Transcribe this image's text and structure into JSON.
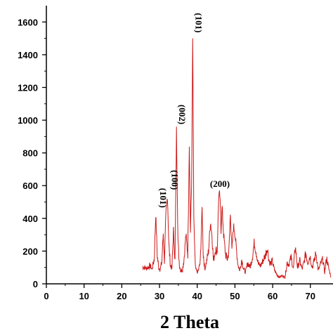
{
  "chart_data": {
    "type": "line",
    "title": "",
    "xlabel": "2 Theta",
    "ylabel": "",
    "xlim": [
      0,
      76
    ],
    "ylim": [
      0,
      1700
    ],
    "x_ticks": [
      0,
      10,
      20,
      30,
      40,
      50,
      60,
      70
    ],
    "y_ticks": [
      0,
      200,
      400,
      600,
      800,
      1000,
      1200,
      1400,
      1600
    ],
    "x_tick_labels": [
      "0",
      "10",
      "20",
      "30",
      "40",
      "50",
      "60",
      "70"
    ],
    "y_tick_labels": [
      "0",
      "200",
      "400",
      "600",
      "800",
      "1000",
      "1200",
      "1400",
      "1600"
    ],
    "grid": false,
    "line_color": "#cc1a1a",
    "series": [
      {
        "x": [
          25.5,
          26.5,
          27.5,
          28.0,
          28.6,
          29.0,
          29.4,
          29.8,
          30.2,
          30.6,
          31.0,
          31.3,
          31.7,
          32.1,
          32.5,
          32.9,
          33.3,
          33.7,
          34.1,
          34.5,
          34.9,
          35.3,
          35.7,
          36.1,
          36.5,
          37.0,
          37.5,
          37.9,
          38.2,
          38.5,
          38.8,
          39.1,
          39.5,
          39.9,
          40.3,
          40.8,
          41.3,
          41.6,
          42.0,
          42.5,
          43.0,
          43.5,
          43.9,
          44.3,
          44.8,
          45.3,
          45.7,
          46.0,
          46.3,
          46.6,
          47.0,
          47.5,
          48.0,
          48.4,
          48.8,
          49.2,
          49.6,
          49.9,
          50.3,
          50.8,
          51.3,
          51.8,
          52.3,
          52.8,
          53.4,
          54.0,
          54.6,
          55.1,
          55.6,
          56.2,
          56.8,
          57.4,
          58.0,
          58.6,
          59.0,
          59.4,
          59.9,
          60.4,
          61.0,
          61.8,
          62.5,
          63.3,
          63.8,
          64.3,
          64.9,
          65.5,
          66.0,
          66.6,
          67.2,
          67.8,
          68.3,
          68.8,
          69.3,
          69.9,
          70.5,
          71.0,
          71.5,
          72.1,
          72.7,
          73.3,
          73.8,
          74.3,
          74.8,
          75.5
        ],
        "values": [
          105,
          95,
          110,
          90,
          150,
          430,
          170,
          100,
          90,
          130,
          310,
          140,
          420,
          540,
          230,
          110,
          95,
          330,
          140,
          940,
          260,
          110,
          80,
          90,
          150,
          300,
          180,
          850,
          320,
          600,
          1500,
          380,
          100,
          70,
          80,
          130,
          460,
          180,
          90,
          140,
          200,
          380,
          300,
          140,
          210,
          200,
          540,
          540,
          330,
          470,
          300,
          180,
          150,
          200,
          430,
          200,
          350,
          330,
          230,
          120,
          80,
          150,
          90,
          70,
          130,
          100,
          160,
          250,
          200,
          120,
          110,
          140,
          170,
          220,
          150,
          120,
          140,
          90,
          60,
          40,
          50,
          40,
          130,
          120,
          160,
          90,
          230,
          100,
          140,
          90,
          130,
          190,
          130,
          170,
          100,
          140,
          190,
          80,
          120,
          150,
          70,
          160,
          100,
          40
        ]
      }
    ],
    "annotations": [
      {
        "text": "(101)",
        "x": 29.4
      },
      {
        "text": "(100)",
        "x": 32.5
      },
      {
        "text": "(002)",
        "x": 34.5
      },
      {
        "text": "(101)",
        "x": 38.8
      },
      {
        "text": "(200)",
        "x": 46.0
      }
    ]
  }
}
